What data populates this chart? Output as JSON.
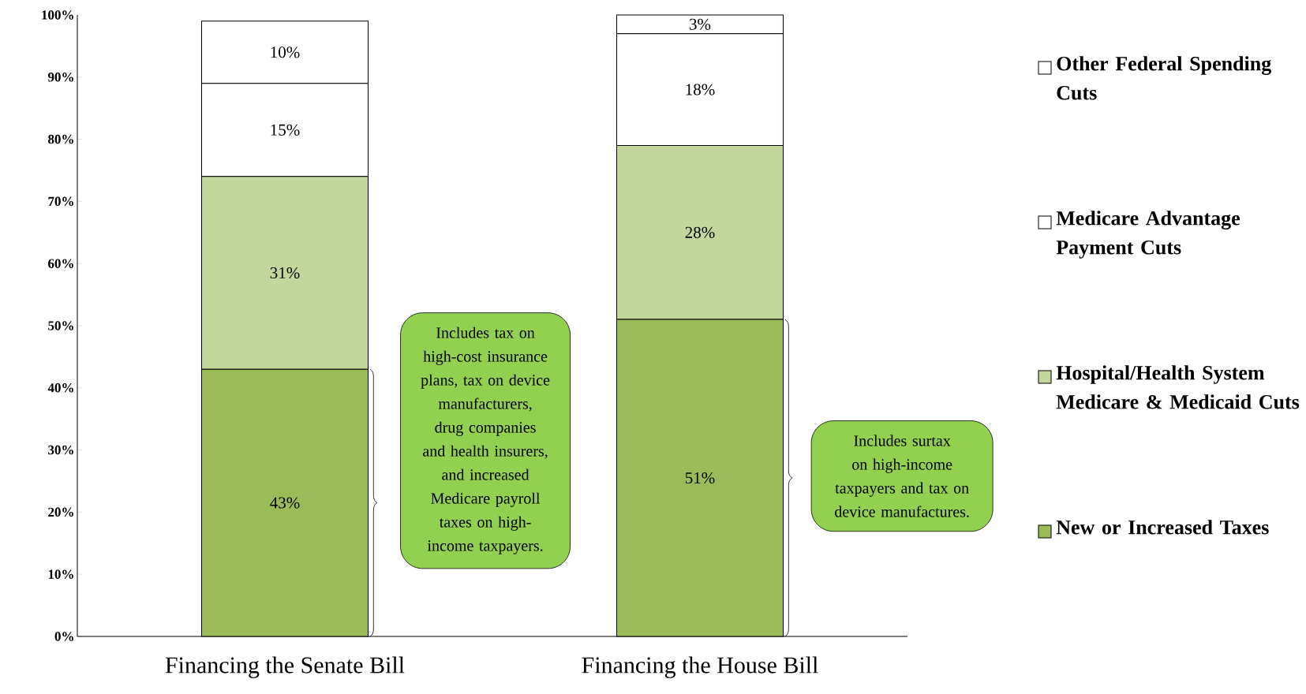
{
  "chart_data": {
    "type": "bar",
    "stacked": true,
    "categories": [
      "Financing the Senate Bill",
      "Financing the House Bill"
    ],
    "series": [
      {
        "name": "New or Increased Taxes",
        "color": "#9bbb59",
        "values": [
          43,
          51
        ],
        "value_labels": [
          "43%",
          "51%"
        ]
      },
      {
        "name": "Hospital/Health System Medicare & Medicaid Cuts",
        "color": "#c3d69b",
        "values": [
          31,
          28
        ],
        "value_labels": [
          "31%",
          "28%"
        ]
      },
      {
        "name": "Medicare Advantage Payment Cuts",
        "color": "#ffffff",
        "values": [
          15,
          18
        ],
        "value_labels": [
          "15%",
          "18%"
        ]
      },
      {
        "name": "Other Federal Spending Cuts",
        "color": "#ffffff",
        "values": [
          10,
          3
        ],
        "value_labels": [
          "10%",
          "3%"
        ]
      }
    ],
    "ylim": [
      0,
      100
    ],
    "yticks": [
      {
        "value": 0,
        "label": "0%"
      },
      {
        "value": 10,
        "label": "10%"
      },
      {
        "value": 20,
        "label": "20%"
      },
      {
        "value": 30,
        "label": "30%"
      },
      {
        "value": 40,
        "label": "40%"
      },
      {
        "value": 50,
        "label": "50%"
      },
      {
        "value": 60,
        "label": "60%"
      },
      {
        "value": 70,
        "label": "70%"
      },
      {
        "value": 80,
        "label": "80%"
      },
      {
        "value": 90,
        "label": "90%"
      },
      {
        "value": 100,
        "label": "100%"
      }
    ],
    "legend": "right",
    "annotations": [
      "Includes tax on high-cost insurance plans, tax on device manufacturers, drug companies and health insurers, and increased Medicare payroll taxes on high-income taxpayers.",
      "Includes surtax on high-income taxpayers and tax on device manufactures."
    ]
  }
}
